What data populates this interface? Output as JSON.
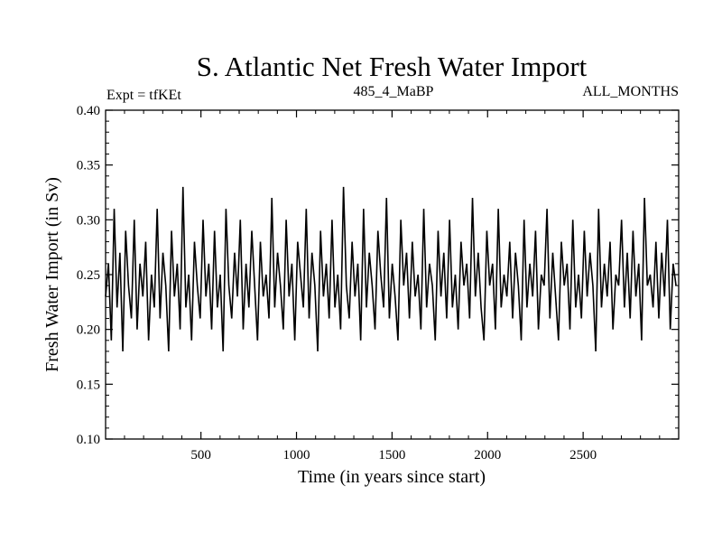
{
  "chart_data": {
    "type": "line",
    "title": "S. Atlantic Net Fresh Water Import",
    "subtitle_left": "Expt = tfKEt",
    "subtitle_center": "485_4_MaBP",
    "subtitle_right": "ALL_MONTHS",
    "xlabel": "Time (in years since start)",
    "ylabel": "Fresh Water Import (in Sv)",
    "xlim": [
      1,
      3000
    ],
    "ylim": [
      0.1,
      0.4
    ],
    "x_ticks": [
      500,
      1000,
      1500,
      2000,
      2500
    ],
    "x_tick_labels": [
      "500",
      "1000",
      "1500",
      "2000",
      "2500"
    ],
    "y_ticks": [
      0.1,
      0.15,
      0.2,
      0.25,
      0.3,
      0.35,
      0.4
    ],
    "y_tick_labels": [
      "0.10",
      "0.15",
      "0.20",
      "0.25",
      "0.30",
      "0.35",
      "0.40"
    ],
    "grid": false,
    "series_color": "#000000",
    "series": [
      {
        "x_start": 1,
        "x_step": 15,
        "values": [
          0.23,
          0.26,
          0.19,
          0.31,
          0.22,
          0.27,
          0.18,
          0.29,
          0.24,
          0.21,
          0.3,
          0.2,
          0.26,
          0.23,
          0.28,
          0.19,
          0.25,
          0.22,
          0.31,
          0.21,
          0.27,
          0.24,
          0.18,
          0.29,
          0.23,
          0.26,
          0.2,
          0.33,
          0.22,
          0.25,
          0.19,
          0.28,
          0.24,
          0.21,
          0.3,
          0.23,
          0.26,
          0.2,
          0.29,
          0.22,
          0.25,
          0.18,
          0.31,
          0.24,
          0.21,
          0.27,
          0.23,
          0.3,
          0.2,
          0.26,
          0.22,
          0.29,
          0.24,
          0.19,
          0.28,
          0.23,
          0.25,
          0.21,
          0.32,
          0.22,
          0.27,
          0.24,
          0.2,
          0.3,
          0.23,
          0.26,
          0.19,
          0.28,
          0.25,
          0.22,
          0.31,
          0.21,
          0.27,
          0.24,
          0.18,
          0.29,
          0.23,
          0.26,
          0.21,
          0.3,
          0.22,
          0.25,
          0.2,
          0.33,
          0.24,
          0.21,
          0.28,
          0.23,
          0.26,
          0.19,
          0.31,
          0.22,
          0.27,
          0.24,
          0.2,
          0.29,
          0.25,
          0.22,
          0.32,
          0.21,
          0.26,
          0.23,
          0.19,
          0.3,
          0.24,
          0.27,
          0.21,
          0.28,
          0.23,
          0.25,
          0.2,
          0.31,
          0.22,
          0.26,
          0.24,
          0.19,
          0.29,
          0.23,
          0.27,
          0.21,
          0.3,
          0.22,
          0.25,
          0.2,
          0.28,
          0.24,
          0.26,
          0.21,
          0.32,
          0.23,
          0.27,
          0.22,
          0.19,
          0.29,
          0.24,
          0.26,
          0.2,
          0.31,
          0.22,
          0.25,
          0.23,
          0.28,
          0.21,
          0.27,
          0.24,
          0.19,
          0.3,
          0.22,
          0.26,
          0.23,
          0.29,
          0.2,
          0.25,
          0.24,
          0.31,
          0.21,
          0.27,
          0.23,
          0.19,
          0.28,
          0.24,
          0.26,
          0.2,
          0.3,
          0.22,
          0.25,
          0.21,
          0.29,
          0.23,
          0.27,
          0.24,
          0.18,
          0.31,
          0.22,
          0.26,
          0.23,
          0.28,
          0.2,
          0.25,
          0.24,
          0.3,
          0.22,
          0.27,
          0.21,
          0.29,
          0.23,
          0.26,
          0.19,
          0.32,
          0.24,
          0.25,
          0.22,
          0.28,
          0.21,
          0.27,
          0.23,
          0.3,
          0.2,
          0.26,
          0.24
        ]
      }
    ]
  }
}
